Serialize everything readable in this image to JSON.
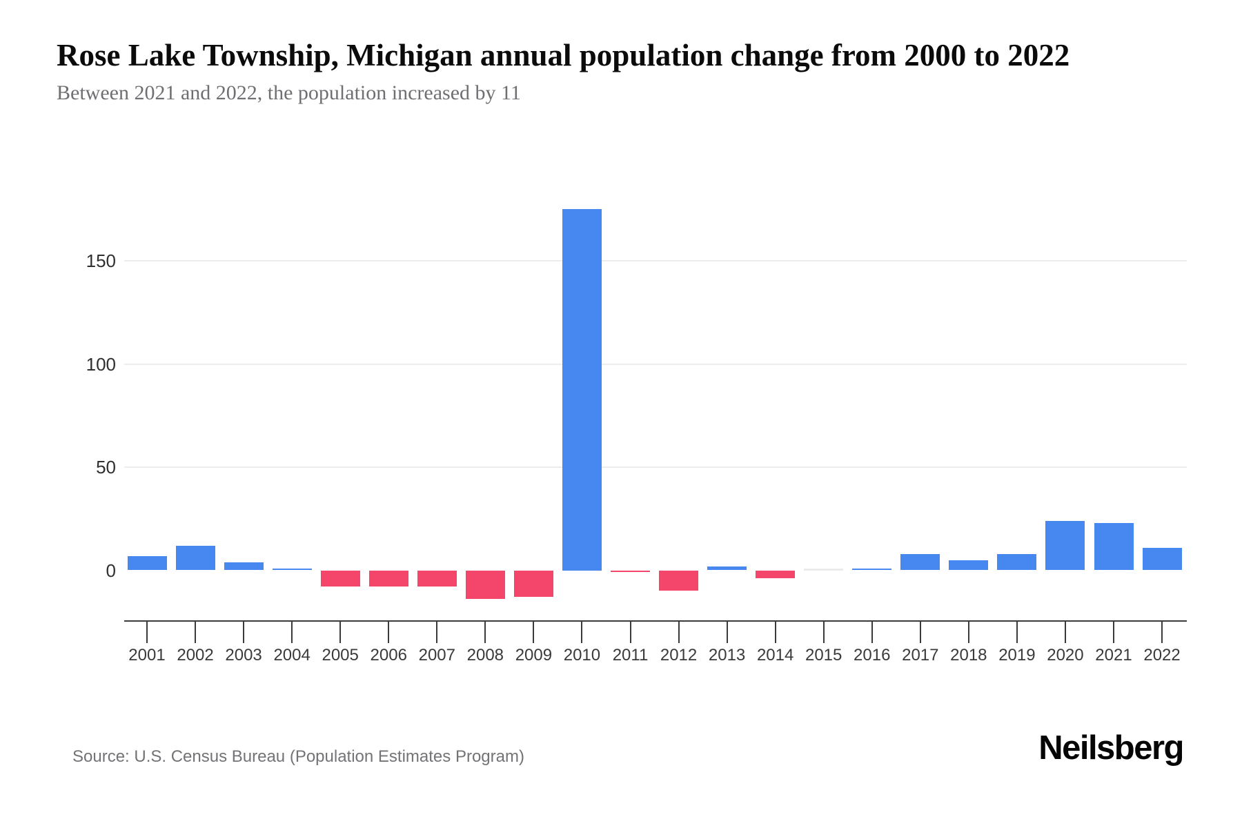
{
  "chart_data": {
    "type": "bar",
    "title": "Rose Lake Township, Michigan annual population change from 2000 to 2022",
    "subtitle": "Between 2021 and 2022, the population increased by 11",
    "categories": [
      "2001",
      "2002",
      "2003",
      "2004",
      "2005",
      "2006",
      "2007",
      "2008",
      "2009",
      "2010",
      "2011",
      "2012",
      "2013",
      "2014",
      "2015",
      "2016",
      "2017",
      "2018",
      "2019",
      "2020",
      "2021",
      "2022"
    ],
    "values": [
      7,
      12,
      4,
      1,
      -8,
      -8,
      -8,
      -14,
      -13,
      175,
      -1,
      -10,
      2,
      -4,
      0,
      1,
      8,
      5,
      8,
      24,
      23,
      11
    ],
    "xlabel": "",
    "ylabel": "",
    "yticks": [
      0,
      50,
      100,
      150
    ],
    "ylim": [
      -20,
      185
    ],
    "grid": "horizontal-light",
    "legend": "none",
    "positive_color": "#4687F0",
    "negative_color": "#F4466B",
    "zero_color": "#EBEBEB"
  },
  "footer": {
    "source": "Source: U.S. Census Bureau (Population Estimates Program)",
    "brand": "Neilsberg"
  }
}
